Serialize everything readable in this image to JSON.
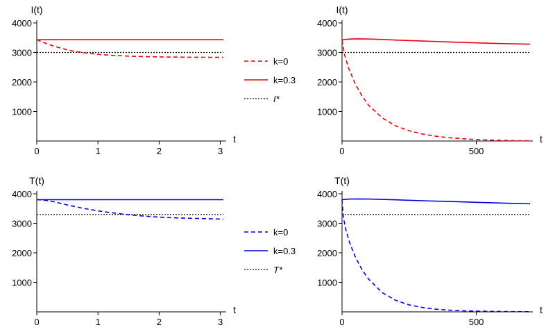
{
  "chart_data": [
    {
      "type": "line",
      "ylabel": "I(t)",
      "xlabel": "t",
      "xlim": [
        0,
        3.05
      ],
      "ylim": [
        0,
        4000
      ],
      "xticks": [
        "0",
        "1",
        "2",
        "3"
      ],
      "xtick_values": [
        0,
        1,
        2,
        3
      ],
      "yticks": [
        "1000",
        "2000",
        "3000",
        "4000"
      ],
      "ytick_values": [
        1000,
        2000,
        3000,
        4000
      ],
      "series": [
        {
          "name": "k=0",
          "color": "#e8000b",
          "style": "dashed",
          "x": [
            0,
            0.1,
            0.2,
            0.3,
            0.4,
            0.5,
            0.6,
            0.8,
            1.0,
            1.25,
            1.5,
            1.75,
            2.0,
            2.25,
            2.5,
            2.75,
            3.05
          ],
          "y": [
            3430,
            3345,
            3270,
            3200,
            3140,
            3088,
            3045,
            2980,
            2935,
            2900,
            2875,
            2860,
            2850,
            2843,
            2838,
            2835,
            2833
          ]
        },
        {
          "name": "k=0.3",
          "color": "#e8000b",
          "style": "solid",
          "x": [
            0,
            3.05
          ],
          "y": [
            3430,
            3430
          ]
        },
        {
          "name": "I*",
          "color": "#000000",
          "style": "dotted",
          "x": [
            0,
            3.05
          ],
          "y": [
            3000,
            3000
          ]
        }
      ]
    },
    {
      "type": "line",
      "ylabel": "I(t)",
      "xlabel": "t",
      "xlim": [
        0,
        700
      ],
      "ylim": [
        0,
        4000
      ],
      "xticks": [
        "0",
        "500"
      ],
      "xtick_values": [
        0,
        500
      ],
      "yticks": [
        "1000",
        "2000",
        "3000",
        "4000"
      ],
      "ytick_values": [
        1000,
        2000,
        3000,
        4000
      ],
      "series": [
        {
          "name": "k=0",
          "color": "#e8000b",
          "style": "dashed",
          "x": [
            0,
            10,
            25,
            50,
            75,
            100,
            150,
            200,
            250,
            300,
            350,
            400,
            450,
            500,
            550,
            600,
            650,
            700
          ],
          "y": [
            3420,
            2900,
            2450,
            1920,
            1520,
            1200,
            780,
            510,
            345,
            235,
            160,
            110,
            75,
            50,
            33,
            20,
            10,
            5
          ]
        },
        {
          "name": "k=0.3",
          "color": "#e8000b",
          "style": "solid",
          "x": [
            0,
            10,
            30,
            60,
            100,
            150,
            200,
            300,
            400,
            500,
            600,
            700
          ],
          "y": [
            3420,
            3440,
            3455,
            3460,
            3455,
            3440,
            3420,
            3385,
            3355,
            3325,
            3300,
            3280
          ]
        },
        {
          "name": "I*",
          "color": "#000000",
          "style": "dotted",
          "x": [
            0,
            700
          ],
          "y": [
            3000,
            3000
          ]
        }
      ]
    },
    {
      "type": "line",
      "ylabel": "T(t)",
      "xlabel": "t",
      "xlim": [
        0,
        3.05
      ],
      "ylim": [
        0,
        4000
      ],
      "xticks": [
        "0",
        "1",
        "2",
        "3"
      ],
      "xtick_values": [
        0,
        1,
        2,
        3
      ],
      "yticks": [
        "1000",
        "2000",
        "3000",
        "4000"
      ],
      "ytick_values": [
        1000,
        2000,
        3000,
        4000
      ],
      "series": [
        {
          "name": "k=0",
          "color": "#0000e6",
          "style": "dashed",
          "x": [
            0,
            0.1,
            0.2,
            0.3,
            0.5,
            0.75,
            1.0,
            1.25,
            1.5,
            1.75,
            2.0,
            2.25,
            2.5,
            2.75,
            3.05
          ],
          "y": [
            3800,
            3790,
            3760,
            3720,
            3620,
            3510,
            3420,
            3350,
            3290,
            3245,
            3210,
            3185,
            3170,
            3158,
            3140
          ]
        },
        {
          "name": "k=0.3",
          "color": "#0000e6",
          "style": "solid",
          "x": [
            0,
            3.05
          ],
          "y": [
            3800,
            3800
          ]
        },
        {
          "name": "T*",
          "color": "#000000",
          "style": "dotted",
          "x": [
            0,
            3.05
          ],
          "y": [
            3300,
            3300
          ]
        }
      ]
    },
    {
      "type": "line",
      "ylabel": "T(t)",
      "xlabel": "t",
      "xlim": [
        0,
        700
      ],
      "ylim": [
        0,
        4000
      ],
      "xticks": [
        "0",
        "500"
      ],
      "xtick_values": [
        0,
        500
      ],
      "yticks": [
        "1000",
        "2000",
        "3000",
        "4000"
      ],
      "ytick_values": [
        1000,
        2000,
        3000,
        4000
      ],
      "series": [
        {
          "name": "k=0",
          "color": "#0000e6",
          "style": "dashed",
          "x": [
            0,
            5,
            15,
            30,
            50,
            75,
            100,
            150,
            200,
            250,
            300,
            350,
            400,
            450,
            500,
            550,
            600,
            650,
            700
          ],
          "y": [
            3800,
            3200,
            2750,
            2300,
            1850,
            1420,
            1100,
            650,
            390,
            235,
            145,
            90,
            57,
            38,
            25,
            17,
            11,
            7,
            5
          ]
        },
        {
          "name": "k=0.3",
          "color": "#0000e6",
          "style": "solid",
          "x": [
            0,
            10,
            30,
            60,
            100,
            150,
            200,
            300,
            400,
            500,
            600,
            700
          ],
          "y": [
            3800,
            3810,
            3820,
            3825,
            3822,
            3810,
            3795,
            3765,
            3738,
            3710,
            3685,
            3660
          ]
        },
        {
          "name": "T*",
          "color": "#000000",
          "style": "dotted",
          "x": [
            0,
            700
          ],
          "y": [
            3300,
            3300
          ]
        }
      ]
    }
  ],
  "legends": [
    {
      "items": [
        {
          "label": "k=0",
          "color": "#e8000b",
          "style": "dashed"
        },
        {
          "label": "k=0.3",
          "color": "#e8000b",
          "style": "solid"
        },
        {
          "label": "I*",
          "color": "#000000",
          "style": "dotted"
        }
      ]
    },
    {
      "items": [
        {
          "label": "k=0",
          "color": "#0000e6",
          "style": "dashed"
        },
        {
          "label": "k=0.3",
          "color": "#0000e6",
          "style": "solid"
        },
        {
          "label": "T*",
          "color": "#000000",
          "style": "dotted"
        }
      ]
    }
  ]
}
